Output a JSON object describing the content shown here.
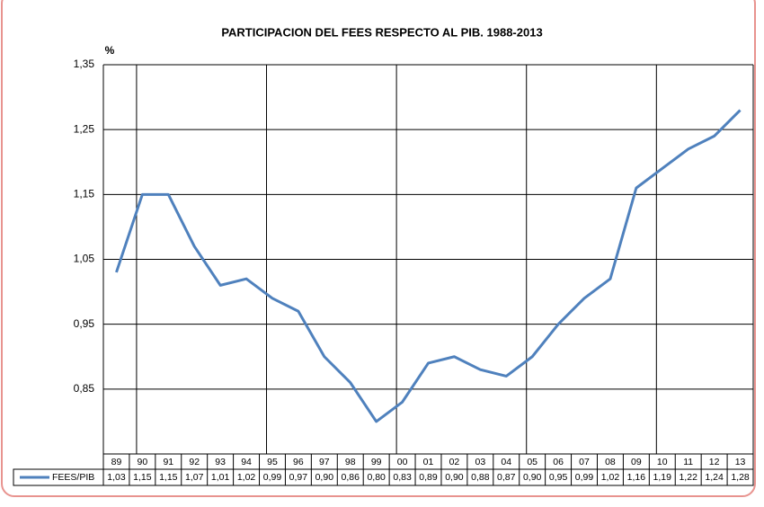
{
  "chart_data": {
    "type": "line",
    "title": "PARTICIPACION DEL FEES RESPECTO AL PIB. 1988-2013",
    "y_label": "%",
    "categories": [
      "89",
      "90",
      "91",
      "92",
      "93",
      "94",
      "95",
      "96",
      "97",
      "98",
      "99",
      "00",
      "01",
      "02",
      "03",
      "04",
      "05",
      "06",
      "07",
      "08",
      "09",
      "10",
      "11",
      "12",
      "13"
    ],
    "series": [
      {
        "name": "FEES/PIB",
        "color": "#4f81bd",
        "values": [
          1.03,
          1.15,
          1.15,
          1.07,
          1.01,
          1.02,
          0.99,
          0.97,
          0.9,
          0.86,
          0.8,
          0.83,
          0.89,
          0.9,
          0.88,
          0.87,
          0.9,
          0.95,
          0.99,
          1.02,
          1.16,
          1.19,
          1.22,
          1.24,
          1.28
        ],
        "value_labels": [
          "1,03",
          "1,15",
          "1,15",
          "1,07",
          "1,01",
          "1,02",
          "0,99",
          "0,97",
          "0,90",
          "0,86",
          "0,80",
          "0,83",
          "0,89",
          "0,90",
          "0,88",
          "0,87",
          "0,90",
          "0,95",
          "0,99",
          "1,02",
          "1,16",
          "1,19",
          "1,22",
          "1,24",
          "1,28"
        ]
      }
    ],
    "ylim": [
      0.75,
      1.35
    ],
    "yticks": [
      {
        "value": 0.85,
        "label": "0,85"
      },
      {
        "value": 0.95,
        "label": "0,95"
      },
      {
        "value": 1.05,
        "label": "1,05"
      },
      {
        "value": 1.15,
        "label": "1,15"
      },
      {
        "value": 1.25,
        "label": "1,25"
      },
      {
        "value": 1.35,
        "label": "1,35"
      }
    ],
    "grid": true
  }
}
